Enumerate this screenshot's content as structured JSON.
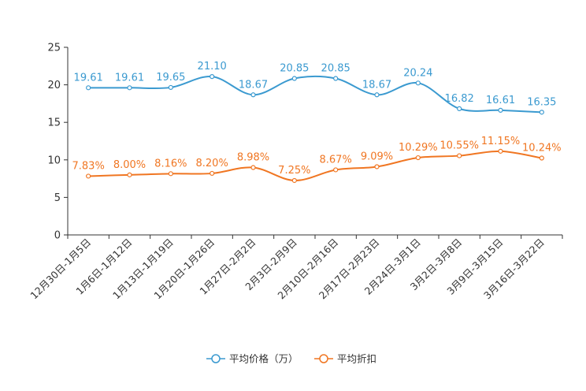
{
  "chart_data": {
    "type": "line",
    "categories": [
      "12月30日-1月5日",
      "1月6日-1月12日",
      "1月13日-1月19日",
      "1月20日-1月26日",
      "1月27日-2月2日",
      "2月3日-2月9日",
      "2月10日-2月16日",
      "2月17日-2月23日",
      "2月24日-3月1日",
      "3月2日-3月8日",
      "3月9日-3月15日",
      "3月16日-3月22日"
    ],
    "series": [
      {
        "name": "平均价格（万）",
        "color": "#3b9ad0",
        "values": [
          19.61,
          19.61,
          19.65,
          21.1,
          18.67,
          20.85,
          20.85,
          18.67,
          20.24,
          16.82,
          16.61,
          16.35
        ],
        "labels": [
          "19.61",
          "19.61",
          "19.65",
          "21.10",
          "18.67",
          "20.85",
          "20.85",
          "18.67",
          "20.24",
          "16.82",
          "16.61",
          "16.35"
        ]
      },
      {
        "name": "平均折扣",
        "color": "#f07622",
        "values": [
          7.83,
          8.0,
          8.16,
          8.2,
          8.98,
          7.25,
          8.67,
          9.09,
          10.29,
          10.55,
          11.15,
          10.24
        ],
        "labels": [
          "7.83%",
          "8.00%",
          "8.16%",
          "8.20%",
          "8.98%",
          "7.25%",
          "8.67%",
          "9.09%",
          "10.29%",
          "10.55%",
          "11.15%",
          "10.24%"
        ]
      }
    ],
    "y_ticks": [
      "0",
      "5",
      "10",
      "15",
      "20",
      "25"
    ],
    "ylim": [
      0,
      25
    ],
    "title": "",
    "xlabel": "",
    "ylabel": "",
    "legend_position": "bottom-center",
    "grid": false
  }
}
